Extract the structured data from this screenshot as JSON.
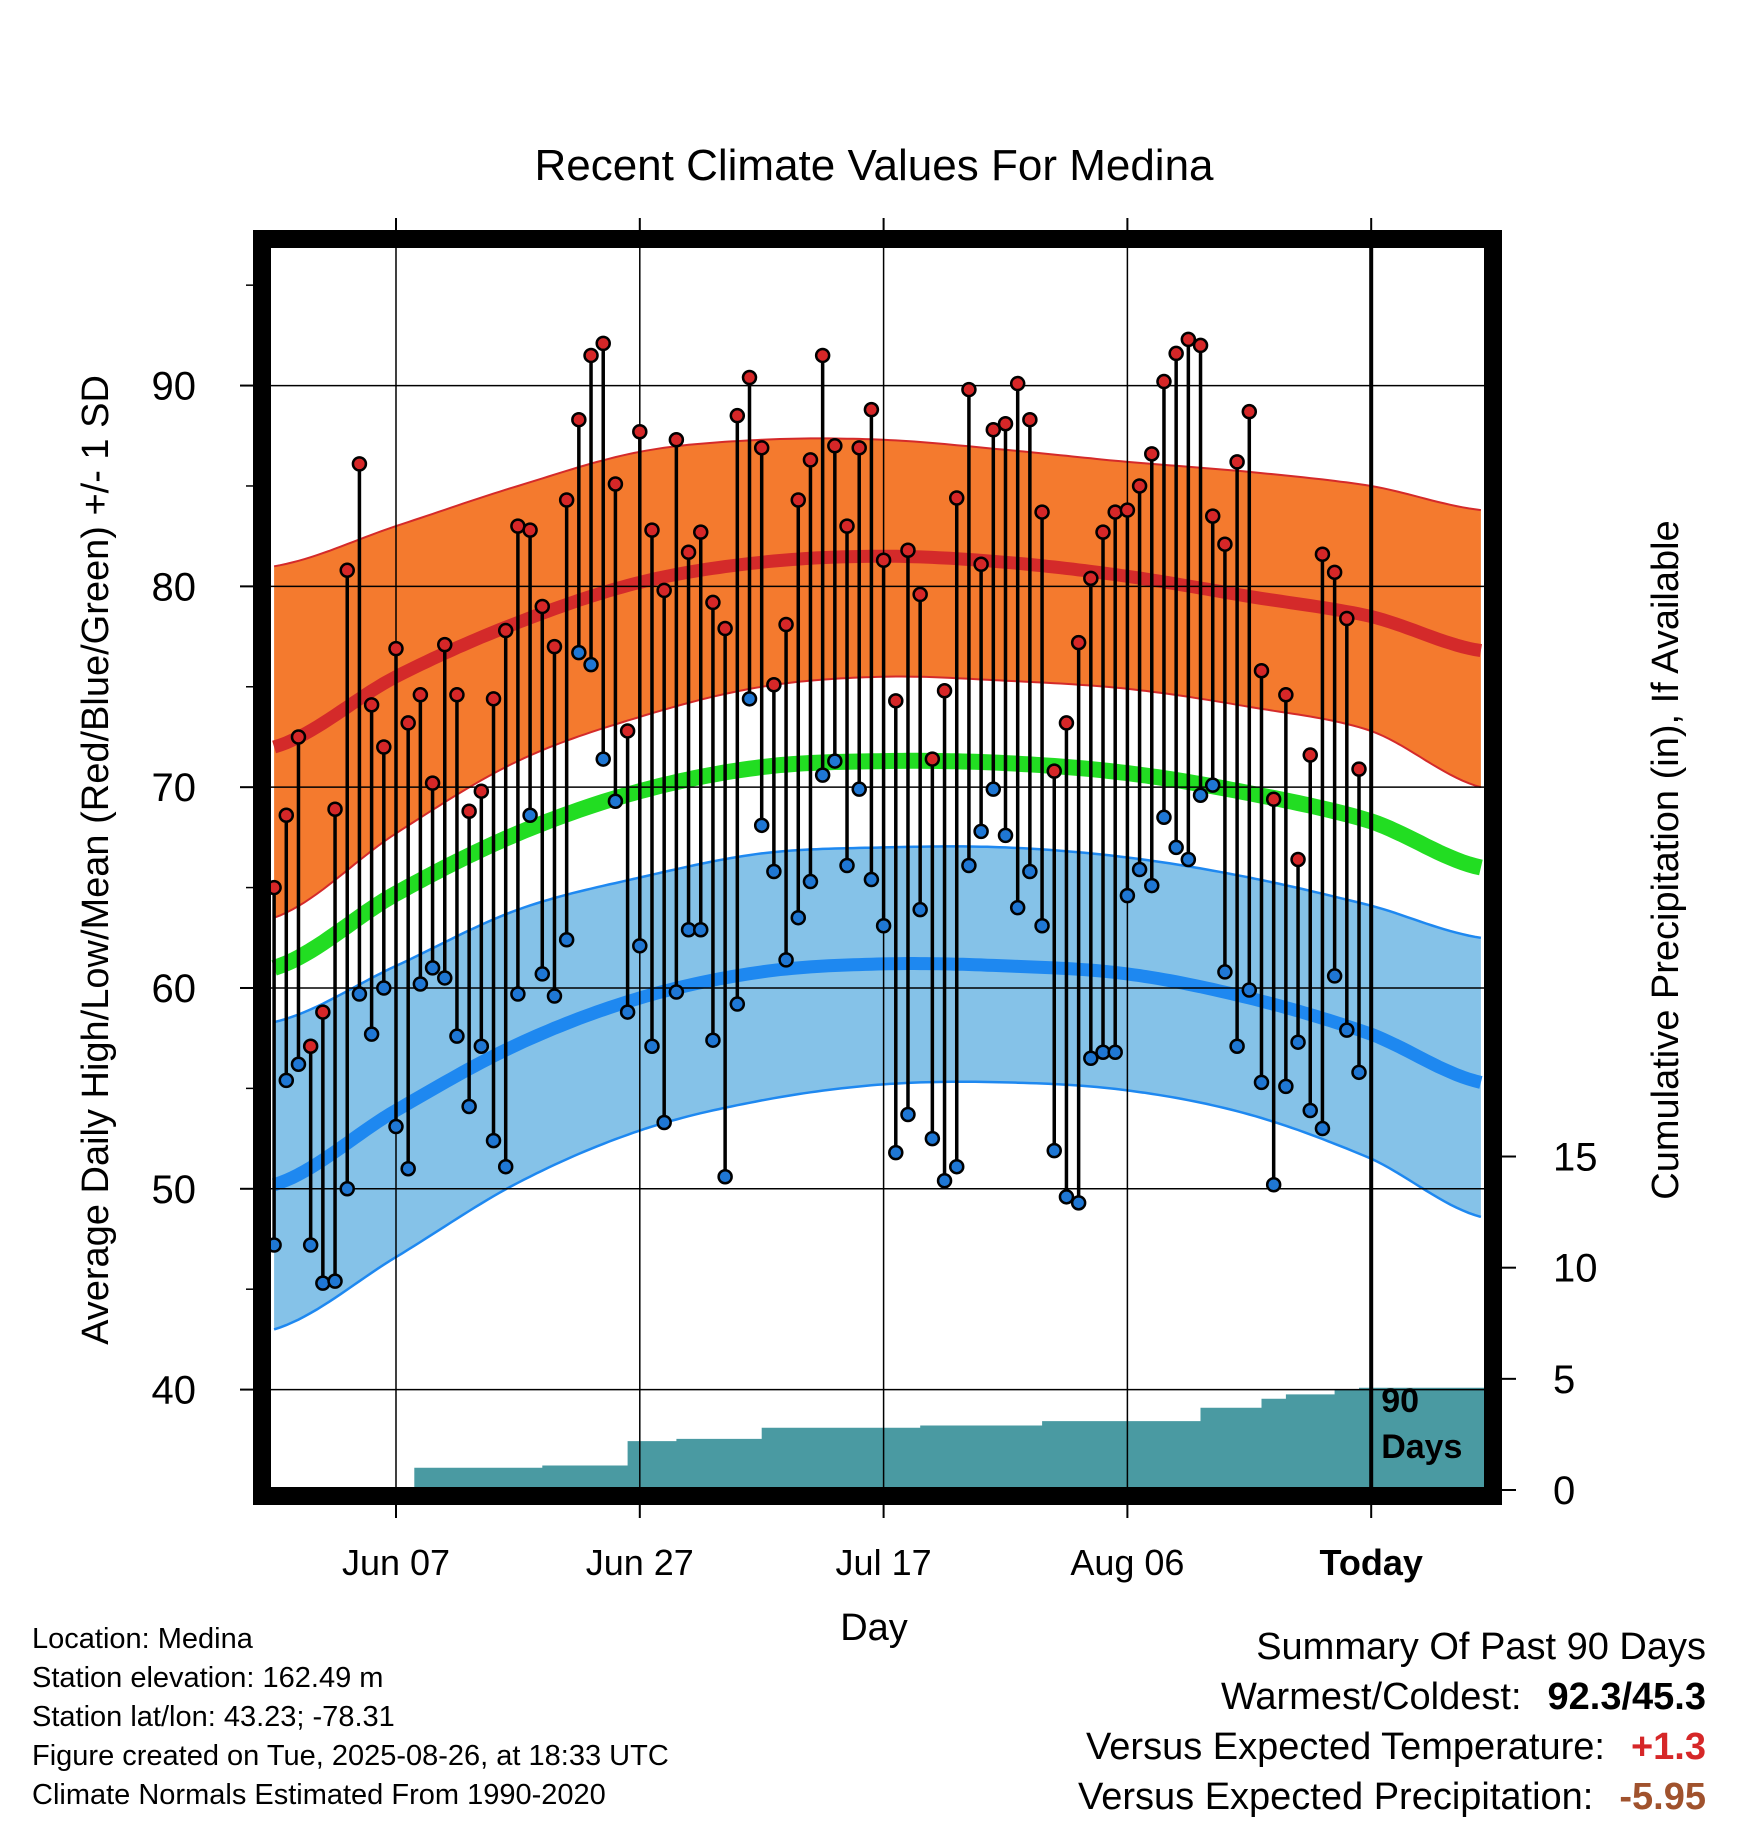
{
  "colors": {
    "high_band": "#f47a2e",
    "high_line": "#d42a2a",
    "low_band": "#85c2e8",
    "low_line": "#1e88f0",
    "mean_line": "#22dd22",
    "precip_fill": "#4a9aa2",
    "high_marker": "#d62728",
    "low_marker": "#1f77d4"
  },
  "chart_data": {
    "type": "line",
    "title": "Recent Climate Values For Medina",
    "xlabel": "Day",
    "ylabel": "Average Daily High/Low/Mean (Red/Blue/Green) +/- 1 SD",
    "y2label": "Cumulative Precipitation (in), If Available",
    "ylim": [
      35,
      97
    ],
    "y2lim": [
      0,
      56
    ],
    "yticks": [
      "40",
      "50",
      "60",
      "70",
      "80",
      "90"
    ],
    "y2ticks": [
      "0",
      "5",
      "10",
      "15"
    ],
    "xticks": [
      {
        "day": 10,
        "label": "Jun 07"
      },
      {
        "day": 30,
        "label": "Jun 27"
      },
      {
        "day": 50,
        "label": "Jul 17"
      },
      {
        "day": 70,
        "label": "Aug 06"
      },
      {
        "day": 90,
        "label": "Today"
      }
    ],
    "xlim": [
      -0.5,
      99.5
    ],
    "today_label": [
      "90",
      "Days"
    ],
    "normals": {
      "x": [
        0,
        10,
        20,
        30,
        40,
        50,
        60,
        70,
        80,
        90,
        99
      ],
      "high_mean": [
        72,
        75.5,
        78.2,
        80.2,
        81.2,
        81.5,
        81.2,
        80.5,
        79.5,
        78.5,
        76.8
      ],
      "high_upper": [
        81,
        83,
        85,
        86.7,
        87.3,
        87.3,
        86.8,
        86.2,
        85.7,
        85.0,
        83.8
      ],
      "high_lower": [
        63.5,
        67.7,
        71.3,
        73.5,
        75.0,
        75.5,
        75.3,
        74.9,
        74.0,
        72.8,
        70.0
      ],
      "avg_mean": [
        61,
        64.7,
        67.7,
        69.8,
        71.0,
        71.3,
        71.2,
        70.7,
        69.7,
        68.3,
        66.0
      ],
      "low_mean": [
        50.2,
        53.9,
        57.2,
        59.5,
        60.8,
        61.2,
        61.1,
        60.7,
        59.5,
        57.7,
        55.3
      ],
      "low_upper": [
        58.3,
        61.1,
        63.9,
        65.5,
        66.7,
        67.0,
        67.0,
        66.5,
        65.5,
        64.1,
        62.5
      ],
      "low_lower": [
        43,
        46.6,
        50.3,
        52.9,
        54.4,
        55.2,
        55.3,
        54.9,
        53.7,
        51.5,
        48.6
      ]
    },
    "precip_steps": [
      {
        "day": 0,
        "value": 0
      },
      {
        "day": 11.5,
        "value": 1.0
      },
      {
        "day": 22,
        "value": 1.1
      },
      {
        "day": 29,
        "value": 2.2
      },
      {
        "day": 33,
        "value": 2.3
      },
      {
        "day": 40,
        "value": 2.8
      },
      {
        "day": 53,
        "value": 2.9
      },
      {
        "day": 63,
        "value": 3.1
      },
      {
        "day": 76,
        "value": 3.7
      },
      {
        "day": 81,
        "value": 4.1
      },
      {
        "day": 83,
        "value": 4.3
      },
      {
        "day": 87,
        "value": 4.5
      },
      {
        "day": 89,
        "value": 4.6
      }
    ],
    "daily_highs": [
      65.0,
      68.6,
      72.5,
      57.1,
      58.8,
      68.9,
      80.8,
      86.1,
      74.1,
      72.0,
      76.9,
      73.2,
      74.6,
      70.2,
      77.1,
      74.6,
      68.8,
      69.8,
      74.4,
      77.8,
      83.0,
      82.8,
      79.0,
      77.0,
      84.3,
      88.3,
      91.5,
      92.1,
      85.1,
      72.8,
      87.7,
      82.8,
      79.8,
      87.3,
      81.7,
      82.7,
      79.2,
      77.9,
      88.5,
      90.4,
      86.9,
      75.1,
      78.1,
      84.3,
      86.3,
      91.5,
      87.0,
      83.0,
      86.9,
      88.8,
      81.3,
      74.3,
      81.8,
      79.6,
      71.4,
      74.8,
      84.4,
      89.8,
      81.1,
      87.8,
      88.1,
      90.1,
      88.3,
      83.7,
      70.8,
      73.2,
      77.2,
      80.4,
      82.7,
      83.7,
      83.8,
      85.0,
      86.6,
      90.2,
      91.6,
      92.3,
      92.0,
      83.5,
      82.1,
      86.2,
      88.7,
      75.8,
      69.4,
      74.6,
      66.4,
      71.6,
      81.6,
      80.7,
      78.4,
      70.9
    ],
    "daily_lows": [
      47.2,
      55.4,
      56.2,
      47.2,
      45.3,
      45.4,
      50.0,
      59.7,
      57.7,
      60.0,
      53.1,
      51.0,
      60.2,
      61.0,
      60.5,
      57.6,
      54.1,
      57.1,
      52.4,
      51.1,
      59.7,
      68.6,
      60.7,
      59.6,
      62.4,
      76.7,
      76.1,
      71.4,
      69.3,
      58.8,
      62.1,
      57.1,
      53.3,
      59.8,
      62.9,
      62.9,
      57.4,
      50.6,
      59.2,
      74.4,
      68.1,
      65.8,
      61.4,
      63.5,
      65.3,
      70.6,
      71.3,
      66.1,
      69.9,
      65.4,
      63.1,
      51.8,
      53.7,
      63.9,
      52.5,
      50.4,
      51.1,
      66.1,
      67.8,
      69.9,
      67.6,
      64.0,
      65.8,
      63.1,
      51.9,
      49.6,
      49.3,
      56.5,
      56.8,
      56.8,
      64.6,
      65.9,
      65.1,
      68.5,
      67.0,
      66.4,
      69.6,
      70.1,
      60.8,
      57.1,
      59.9,
      55.3,
      50.2,
      55.1,
      57.3,
      53.9,
      53.0,
      60.6,
      57.9,
      55.8
    ]
  },
  "info": {
    "location": "Location: Medina",
    "elevation": "Station elevation: 162.49 m",
    "latlon": "Station lat/lon: 43.23; -78.31",
    "created": "Figure created on Tue, 2025-08-26, at 18:33 UTC",
    "normals": "Climate Normals Estimated From 1990-2020"
  },
  "summary": {
    "heading": "Summary Of Past 90 Days",
    "warmest_label": "Warmest/Coldest:",
    "warmest_value": "92.3/45.3",
    "temp_label": "Versus Expected Temperature:",
    "temp_value": "+1.3",
    "precip_label": "Versus Expected Precipitation:",
    "precip_value": "-5.95"
  }
}
